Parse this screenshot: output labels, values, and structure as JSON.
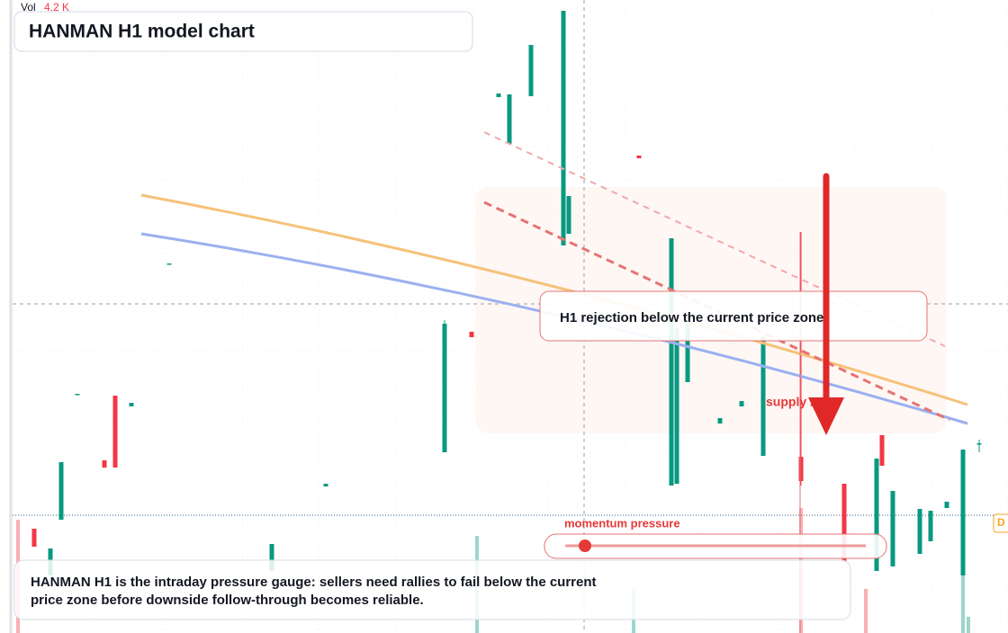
{
  "chart_data": {
    "type": "candlestick",
    "title": "HANMAN H1 model chart",
    "volume_title": "Vol",
    "volume_readout": "4.2 K",
    "annotation": "H1 rejection below the current price zone",
    "zone_label": "supply zone",
    "gauge_label": "momentum pressure",
    "description": "HANMAN H1 is the intraday pressure gauge: sellers need rallies to fail below the current price zone before downside follow-through becomes reliable.",
    "price_tag": "D",
    "up_color": "#089981",
    "down_color": "#f23645",
    "xlim": [
      0,
      181
    ],
    "ylim": [
      100,
      170.4
    ],
    "x": [
      4,
      7,
      9,
      12,
      17,
      19,
      22,
      29,
      48,
      58,
      80,
      85,
      90,
      92,
      96,
      102,
      103,
      116,
      122,
      123,
      125,
      131,
      135,
      139,
      146,
      154,
      160,
      161,
      163,
      168,
      170,
      173,
      176,
      179
    ],
    "open": [
      111.6,
      106.4,
      112.6,
      126.6,
      119.2,
      126.4,
      125.2,
      141.1,
      106.9,
      116.3,
      120.1,
      133.5,
      159.6,
      154.4,
      159.7,
      143.1,
      144.4,
      153.1,
      116.4,
      116.6,
      127.9,
      123.3,
      125.2,
      119.7,
      119.6,
      116.6,
      106.9,
      122.0,
      107.4,
      108.8,
      110.2,
      113.9,
      106.4,
      121.1
    ],
    "high": [
      111.6,
      109.4,
      119.0,
      126.6,
      119.2,
      126.4,
      125.6,
      141.1,
      109.9,
      116.6,
      134.8,
      133.5,
      160.0,
      159.9,
      165.4,
      169.2,
      148.6,
      153.1,
      143.9,
      133.9,
      134.4,
      123.9,
      125.8,
      132.9,
      144.6,
      116.6,
      119.4,
      122.0,
      115.8,
      113.8,
      113.6,
      114.6,
      120.4,
      121.5
    ],
    "low": [
      109.6,
      106.4,
      112.6,
      126.6,
      118.4,
      118.4,
      125.2,
      141.1,
      106.9,
      116.3,
      120.1,
      132.9,
      159.6,
      154.4,
      159.7,
      143.1,
      144.4,
      152.8,
      116.4,
      116.6,
      127.9,
      123.3,
      125.2,
      119.7,
      116.4,
      107.9,
      106.9,
      118.6,
      107.4,
      108.8,
      110.2,
      113.9,
      106.4,
      120.1
    ],
    "close": [
      109.6,
      109.4,
      119.0,
      126.6,
      118.4,
      118.4,
      125.6,
      141.1,
      109.9,
      116.6,
      134.4,
      132.9,
      160.0,
      159.9,
      165.4,
      169.2,
      148.6,
      152.8,
      143.9,
      133.9,
      134.4,
      123.9,
      125.8,
      132.9,
      116.9,
      107.9,
      119.4,
      118.6,
      115.8,
      113.8,
      113.6,
      114.6,
      120.4,
      121.1
    ],
    "volume_lim": [
      0,
      4500
    ],
    "volume_up": {
      "x": [
        86,
        115,
        176,
        177
      ],
      "values": [
        3470,
        1580,
        2060,
        580
      ]
    },
    "volume_down": {
      "x": [
        1,
        146,
        158
      ],
      "values": [
        4050,
        4470,
        1580
      ]
    }
  }
}
